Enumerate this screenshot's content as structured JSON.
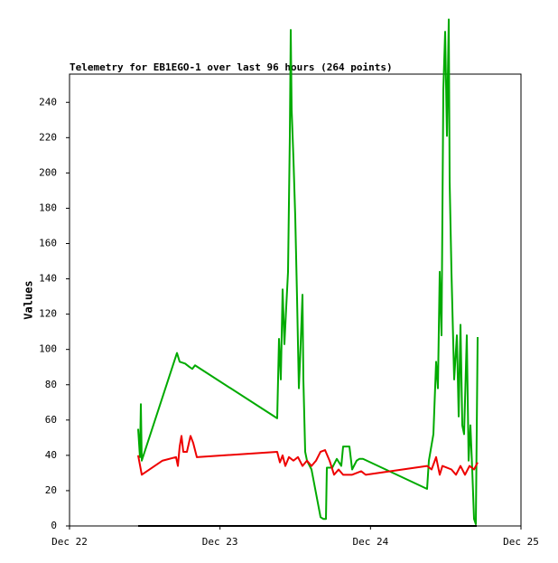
{
  "chart_data": {
    "type": "line",
    "title": "Telemetry for EB1EGO-1 over last 96 hours (264 points)",
    "y_label": "Values",
    "xlim": [
      0,
      3
    ],
    "xticks": [
      {
        "value": 0,
        "label": "Dec 22"
      },
      {
        "value": 1,
        "label": "Dec 23"
      },
      {
        "value": 2,
        "label": "Dec 24"
      },
      {
        "value": 3,
        "label": "Dec 25"
      }
    ],
    "ylim": [
      0,
      256
    ],
    "yticks": [
      0,
      20,
      40,
      60,
      80,
      100,
      120,
      140,
      160,
      180,
      200,
      220,
      240
    ],
    "grid": false,
    "series": [
      {
        "color": "#00aa00",
        "x": [
          0.456,
          0.468,
          0.474,
          0.48,
          0.714,
          0.732,
          0.768,
          0.798,
          0.816,
          0.834,
          1.38,
          1.392,
          1.404,
          1.416,
          1.428,
          1.44,
          1.452,
          1.464,
          1.47,
          1.476,
          1.488,
          1.5,
          1.512,
          1.524,
          1.536,
          1.548,
          1.554,
          1.566,
          1.578,
          1.608,
          1.668,
          1.686,
          1.704,
          1.71,
          1.746,
          1.776,
          1.806,
          1.818,
          1.86,
          1.878,
          1.908,
          1.926,
          1.95,
          2.376,
          2.388,
          2.418,
          2.436,
          2.448,
          2.46,
          2.472,
          2.484,
          2.496,
          2.508,
          2.52,
          2.526,
          2.538,
          2.556,
          2.574,
          2.586,
          2.598,
          2.61,
          2.622,
          2.64,
          2.652,
          2.664,
          2.676,
          2.688,
          2.7,
          2.712
        ],
        "values": [
          55,
          39,
          69,
          37,
          98,
          93,
          92,
          90,
          89,
          91,
          61,
          106,
          83,
          134,
          103,
          124,
          144,
          221,
          281,
          236,
          208,
          175,
          129,
          78,
          103,
          131,
          83,
          42,
          37,
          32,
          5,
          4,
          4,
          33,
          33,
          38,
          34,
          45,
          45,
          32,
          37,
          38,
          38,
          21,
          37,
          52,
          93,
          78,
          144,
          108,
          247,
          280,
          221,
          287,
          195,
          144,
          83,
          108,
          62,
          114,
          57,
          52,
          108,
          37,
          57,
          32,
          4,
          1,
          107
        ]
      },
      {
        "color": "#ee0000",
        "x": [
          0.456,
          0.48,
          0.618,
          0.708,
          0.72,
          0.732,
          0.744,
          0.756,
          0.78,
          0.804,
          0.822,
          0.846,
          1.38,
          1.398,
          1.416,
          1.434,
          1.458,
          1.488,
          1.518,
          1.548,
          1.578,
          1.608,
          1.638,
          1.668,
          1.698,
          1.728,
          1.758,
          1.788,
          1.818,
          1.878,
          1.938,
          1.968,
          2.376,
          2.406,
          2.436,
          2.46,
          2.478,
          2.538,
          2.568,
          2.598,
          2.628,
          2.658,
          2.688,
          2.712
        ],
        "values": [
          40,
          29,
          37,
          39,
          34,
          45,
          51,
          42,
          42,
          51,
          47,
          39,
          42,
          36,
          40,
          34,
          39,
          37,
          39,
          34,
          37,
          34,
          37,
          42,
          43,
          37,
          29,
          32,
          29,
          29,
          31,
          29,
          34,
          32,
          39,
          29,
          34,
          32,
          29,
          34,
          29,
          34,
          32,
          36
        ]
      },
      {
        "color": "#000000",
        "x": [
          0.456,
          2.706
        ],
        "values": [
          0,
          0
        ]
      }
    ]
  }
}
